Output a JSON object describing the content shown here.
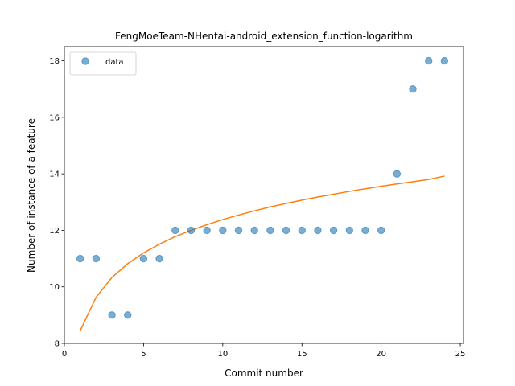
{
  "chart_data": {
    "type": "scatter",
    "title": "FengMoeTeam-NHentai-android_extension_function-logarithm",
    "xlabel": "Commit number",
    "ylabel": "Number of instance of a feature",
    "xlim": [
      0,
      25.2
    ],
    "ylim": [
      8,
      18.5
    ],
    "xticks": [
      0,
      5,
      10,
      15,
      20,
      25
    ],
    "yticks": [
      8,
      10,
      12,
      14,
      16,
      18
    ],
    "grid": false,
    "legend_position": "upper left",
    "series": [
      {
        "name": "data",
        "kind": "scatter",
        "color": "#1f77b4",
        "x": [
          1,
          2,
          3,
          4,
          5,
          6,
          7,
          8,
          9,
          10,
          11,
          12,
          13,
          14,
          15,
          16,
          17,
          18,
          19,
          20,
          21,
          22,
          23,
          24
        ],
        "y": [
          11,
          11,
          9,
          9,
          11,
          11,
          12,
          12,
          12,
          12,
          12,
          12,
          12,
          12,
          12,
          12,
          12,
          12,
          12,
          12,
          14,
          17,
          18,
          18
        ]
      },
      {
        "kind": "line",
        "color": "#ff7f0e",
        "x": [
          1,
          2,
          3,
          4,
          5,
          6,
          7,
          8,
          9,
          10,
          11,
          12,
          13,
          14,
          15,
          16,
          17,
          18,
          19,
          20,
          21,
          22,
          23,
          24
        ],
        "y": [
          8.45,
          9.63,
          10.33,
          10.82,
          11.2,
          11.51,
          11.78,
          12.0,
          12.2,
          12.38,
          12.54,
          12.69,
          12.83,
          12.95,
          13.07,
          13.18,
          13.28,
          13.38,
          13.47,
          13.56,
          13.64,
          13.72,
          13.8,
          13.92
        ]
      }
    ]
  }
}
